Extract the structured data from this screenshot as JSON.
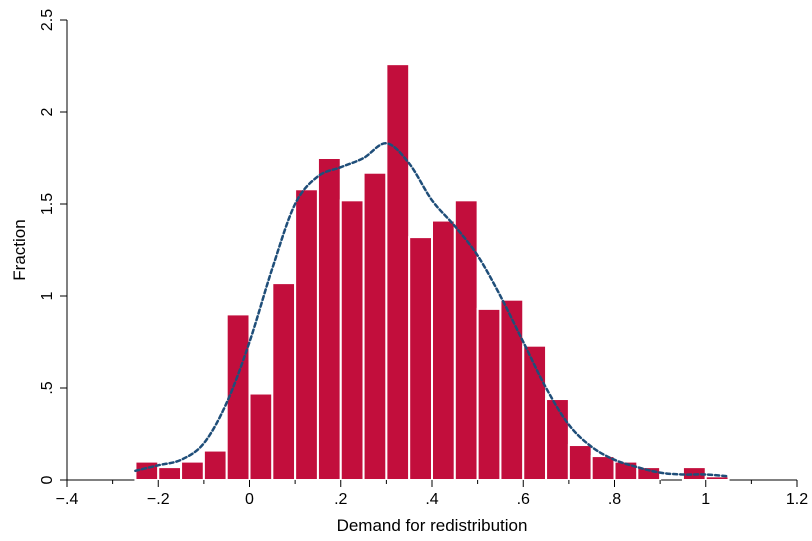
{
  "chart_data": {
    "type": "bar",
    "subtype": "histogram-with-density",
    "title": "",
    "xlabel": "Demand for redistribution",
    "ylabel": "Fraction",
    "xlim": [
      -0.4,
      1.2
    ],
    "ylim": [
      0,
      2.5
    ],
    "x_ticks": [
      -0.4,
      -0.2,
      0,
      0.2,
      0.4,
      0.6,
      0.8,
      1,
      1.2
    ],
    "x_tick_labels": [
      "−.4",
      "−.2",
      "0",
      ".2",
      ".4",
      ".6",
      ".8",
      "1",
      "1.2"
    ],
    "y_ticks": [
      0,
      0.5,
      1,
      1.5,
      2,
      2.5
    ],
    "y_tick_labels": [
      "0",
      ".5",
      "1",
      "1.5",
      "2",
      "2.5"
    ],
    "bin_width": 0.05,
    "bins": [
      {
        "x": -0.25,
        "value": 0.1
      },
      {
        "x": -0.2,
        "value": 0.07
      },
      {
        "x": -0.15,
        "value": 0.1
      },
      {
        "x": -0.1,
        "value": 0.16
      },
      {
        "x": -0.05,
        "value": 0.9
      },
      {
        "x": 0.0,
        "value": 0.47
      },
      {
        "x": 0.05,
        "value": 1.07
      },
      {
        "x": 0.1,
        "value": 1.58
      },
      {
        "x": 0.15,
        "value": 1.75
      },
      {
        "x": 0.2,
        "value": 1.52
      },
      {
        "x": 0.25,
        "value": 1.67
      },
      {
        "x": 0.3,
        "value": 2.26
      },
      {
        "x": 0.35,
        "value": 1.32
      },
      {
        "x": 0.4,
        "value": 1.41
      },
      {
        "x": 0.45,
        "value": 1.52
      },
      {
        "x": 0.5,
        "value": 0.93
      },
      {
        "x": 0.55,
        "value": 0.98
      },
      {
        "x": 0.6,
        "value": 0.73
      },
      {
        "x": 0.65,
        "value": 0.44
      },
      {
        "x": 0.7,
        "value": 0.19
      },
      {
        "x": 0.75,
        "value": 0.13
      },
      {
        "x": 0.8,
        "value": 0.1
      },
      {
        "x": 0.85,
        "value": 0.07
      },
      {
        "x": 0.9,
        "value": 0
      },
      {
        "x": 0.95,
        "value": 0.07
      },
      {
        "x": 1.0,
        "value": 0.02
      }
    ],
    "density_curve": {
      "style": "dashed",
      "x": [
        -0.25,
        -0.2,
        -0.15,
        -0.1,
        -0.05,
        0.0,
        0.05,
        0.1,
        0.15,
        0.2,
        0.25,
        0.3,
        0.35,
        0.4,
        0.45,
        0.5,
        0.55,
        0.6,
        0.65,
        0.7,
        0.75,
        0.8,
        0.85,
        0.9,
        0.95,
        1.0,
        1.05
      ],
      "y": [
        0.05,
        0.08,
        0.11,
        0.2,
        0.42,
        0.75,
        1.15,
        1.5,
        1.65,
        1.7,
        1.75,
        1.83,
        1.72,
        1.52,
        1.38,
        1.22,
        1.0,
        0.75,
        0.5,
        0.3,
        0.18,
        0.11,
        0.07,
        0.04,
        0.03,
        0.03,
        0.02
      ]
    },
    "colors": {
      "bar": "#c20e3c",
      "bar_edge": "#ffffff",
      "curve": "#1f4e79",
      "axis": "#000000"
    },
    "grid": false,
    "legend": "none"
  }
}
